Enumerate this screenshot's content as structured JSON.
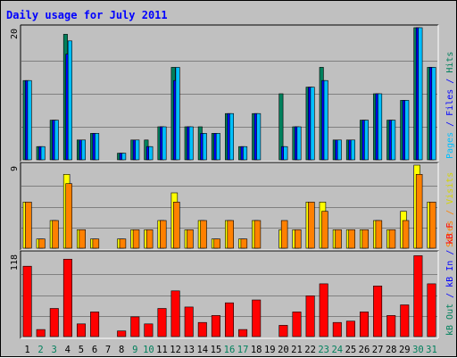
{
  "chart_data": {
    "type": "bar",
    "title": "Daily usage for July 2011",
    "categories": [
      "1",
      "2",
      "3",
      "4",
      "5",
      "6",
      "7",
      "8",
      "9",
      "10",
      "11",
      "12",
      "13",
      "14",
      "15",
      "16",
      "17",
      "18",
      "19",
      "20",
      "21",
      "22",
      "23",
      "24",
      "25",
      "26",
      "27",
      "28",
      "29",
      "30",
      "31"
    ],
    "weekend_days": [
      "2",
      "3",
      "9",
      "10",
      "16",
      "17",
      "23",
      "24",
      "30",
      "31"
    ],
    "panels": [
      {
        "id": "top",
        "axis_max_label": "20",
        "ymax": 20,
        "side_labels": [
          {
            "text": "Hits",
            "color": "#00805c"
          },
          {
            "text": " / ",
            "color": "#0000ff"
          },
          {
            "text": "Files",
            "color": "#0000ff"
          },
          {
            "text": " / ",
            "color": "#0000ff"
          },
          {
            "text": "Pages",
            "color": "#00bfff"
          }
        ],
        "series": [
          {
            "name": "Hits",
            "color": "#00805c",
            "values": [
              12,
              2,
              6,
              19,
              3,
              4,
              0,
              1,
              3,
              3,
              5,
              14,
              5,
              5,
              4,
              7,
              2,
              7,
              0,
              10,
              5,
              11,
              14,
              3,
              3,
              6,
              10,
              6,
              9,
              20,
              14
            ]
          },
          {
            "name": "Files",
            "color": "#0000ff",
            "values": [
              12,
              2,
              6,
              16,
              3,
              4,
              0,
              1,
              3,
              2,
              5,
              12,
              5,
              4,
              4,
              7,
              2,
              7,
              0,
              2,
              5,
              11,
              12,
              3,
              3,
              6,
              10,
              6,
              9,
              20,
              14
            ]
          },
          {
            "name": "Pages",
            "color": "#00bfff",
            "values": [
              12,
              2,
              6,
              18,
              3,
              4,
              0,
              1,
              3,
              2,
              5,
              14,
              5,
              4,
              4,
              7,
              2,
              7,
              0,
              2,
              5,
              11,
              12,
              3,
              3,
              6,
              10,
              6,
              9,
              20,
              14
            ]
          }
        ]
      },
      {
        "id": "middle",
        "axis_max_label": "9",
        "ymax": 9,
        "side_labels": [
          {
            "text": "Visits",
            "color": "#d4d400"
          },
          {
            "text": " / ",
            "color": "#ff8000"
          },
          {
            "text": "Sites",
            "color": "#ff8000"
          }
        ],
        "series": [
          {
            "name": "Visits",
            "color": "#ffff00",
            "values": [
              5,
              1,
              3,
              8,
              2,
              1,
              0,
              1,
              2,
              2,
              3,
              6,
              2,
              3,
              1,
              3,
              1,
              3,
              0,
              2,
              2,
              5,
              5,
              2,
              2,
              2,
              3,
              2,
              4,
              9,
              5
            ]
          },
          {
            "name": "Sites",
            "color": "#ff8000",
            "values": [
              5,
              1,
              3,
              7,
              2,
              1,
              0,
              1,
              2,
              2,
              3,
              5,
              2,
              3,
              1,
              3,
              1,
              3,
              0,
              3,
              2,
              5,
              4,
              2,
              2,
              2,
              3,
              2,
              3,
              8,
              5
            ]
          }
        ]
      },
      {
        "id": "bottom",
        "axis_max_label": "118",
        "ymax": 118,
        "side_labels": [
          {
            "text": "kB F",
            "color": "#ff0000"
          },
          {
            "text": " / ",
            "color": "#0000ff"
          },
          {
            "text": "kB In",
            "color": "#0000ff"
          },
          {
            "text": " / ",
            "color": "#0000ff"
          },
          {
            "text": "kB Out",
            "color": "#00805c"
          }
        ],
        "series": [
          {
            "name": "kB F",
            "color": "#ff0000",
            "values": [
              100,
              10,
              40,
              110,
              18,
              35,
              0,
              8,
              28,
              18,
              40,
              65,
              42,
              20,
              30,
              48,
              10,
              52,
              0,
              16,
              35,
              58,
              75,
              20,
              22,
              35,
              72,
              30,
              45,
              115,
              75
            ]
          }
        ]
      }
    ]
  }
}
